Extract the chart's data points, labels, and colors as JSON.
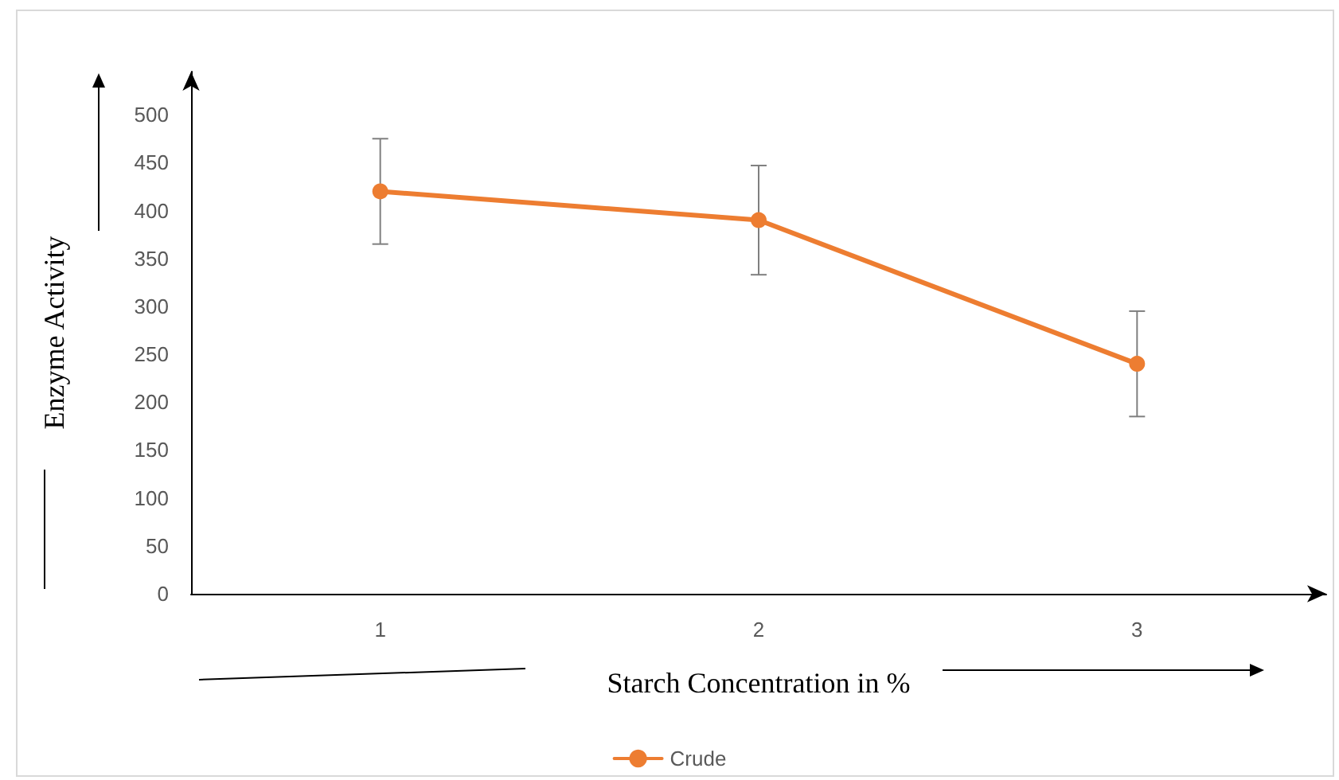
{
  "chart_data": {
    "type": "line",
    "xlabel": "Starch Concentration in %",
    "ylabel": "Enzyme Activity",
    "categories": [
      "1",
      "2",
      "3"
    ],
    "series": [
      {
        "name": "Crude",
        "color": "#ed7d31",
        "values": [
          420,
          390,
          240
        ],
        "errors": [
          55,
          57,
          55
        ]
      }
    ],
    "ylim": [
      0,
      545
    ],
    "yticks": [
      0,
      50,
      100,
      150,
      200,
      250,
      300,
      350,
      400,
      450,
      500
    ],
    "grid": false,
    "legend": "bottom",
    "marker": "circle",
    "line_style": "solid"
  }
}
